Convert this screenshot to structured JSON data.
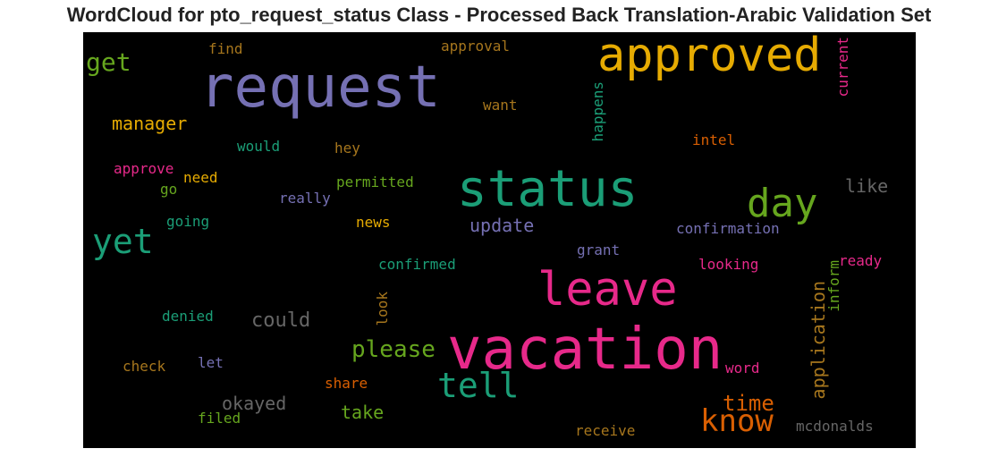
{
  "chart_data": {
    "type": "wordcloud",
    "title": "WordCloud for pto_request_status Class - Processed Back Translation-Arabic Validation Set",
    "background": "#000000",
    "words": [
      {
        "text": "request",
        "color": "#7570b3"
      },
      {
        "text": "approved",
        "color": "#e6ab02"
      },
      {
        "text": "get",
        "color": "#66a61e"
      },
      {
        "text": "find",
        "color": "#a6761d"
      },
      {
        "text": "approval",
        "color": "#a6761d"
      },
      {
        "text": "current",
        "color": "#e7298a"
      },
      {
        "text": "manager",
        "color": "#e6ab02"
      },
      {
        "text": "want",
        "color": "#a6761d"
      },
      {
        "text": "happens",
        "color": "#1b9e77"
      },
      {
        "text": "intel",
        "color": "#d95f02"
      },
      {
        "text": "would",
        "color": "#1b9e77"
      },
      {
        "text": "hey",
        "color": "#a6761d"
      },
      {
        "text": "status",
        "color": "#1b9e77"
      },
      {
        "text": "day",
        "color": "#66a61e"
      },
      {
        "text": "approve",
        "color": "#e7298a"
      },
      {
        "text": "need",
        "color": "#e6ab02"
      },
      {
        "text": "go",
        "color": "#66a61e"
      },
      {
        "text": "permitted",
        "color": "#66a61e"
      },
      {
        "text": "really",
        "color": "#7570b3"
      },
      {
        "text": "like",
        "color": "#666666"
      },
      {
        "text": "yet",
        "color": "#1b9e77"
      },
      {
        "text": "going",
        "color": "#1b9e77"
      },
      {
        "text": "news",
        "color": "#e6ab02"
      },
      {
        "text": "update",
        "color": "#7570b3"
      },
      {
        "text": "confirmation",
        "color": "#7570b3"
      },
      {
        "text": "grant",
        "color": "#7570b3"
      },
      {
        "text": "ready",
        "color": "#e7298a"
      },
      {
        "text": "confirmed",
        "color": "#1b9e77"
      },
      {
        "text": "looking",
        "color": "#e7298a"
      },
      {
        "text": "leave",
        "color": "#e7298a"
      },
      {
        "text": "inform",
        "color": "#66a61e"
      },
      {
        "text": "look",
        "color": "#a6761d"
      },
      {
        "text": "application",
        "color": "#a6761d"
      },
      {
        "text": "could",
        "color": "#666666"
      },
      {
        "text": "denied",
        "color": "#1b9e77"
      },
      {
        "text": "please",
        "color": "#66a61e"
      },
      {
        "text": "vacation",
        "color": "#e7298a"
      },
      {
        "text": "check",
        "color": "#a6761d"
      },
      {
        "text": "let",
        "color": "#7570b3"
      },
      {
        "text": "word",
        "color": "#e7298a"
      },
      {
        "text": "tell",
        "color": "#1b9e77"
      },
      {
        "text": "share",
        "color": "#d95f02"
      },
      {
        "text": "time",
        "color": "#d95f02"
      },
      {
        "text": "okayed",
        "color": "#666666"
      },
      {
        "text": "know",
        "color": "#d95f02"
      },
      {
        "text": "take",
        "color": "#66a61e"
      },
      {
        "text": "filed",
        "color": "#66a61e"
      },
      {
        "text": "receive",
        "color": "#a6761d"
      },
      {
        "text": "mcdonalds",
        "color": "#666666"
      }
    ]
  }
}
